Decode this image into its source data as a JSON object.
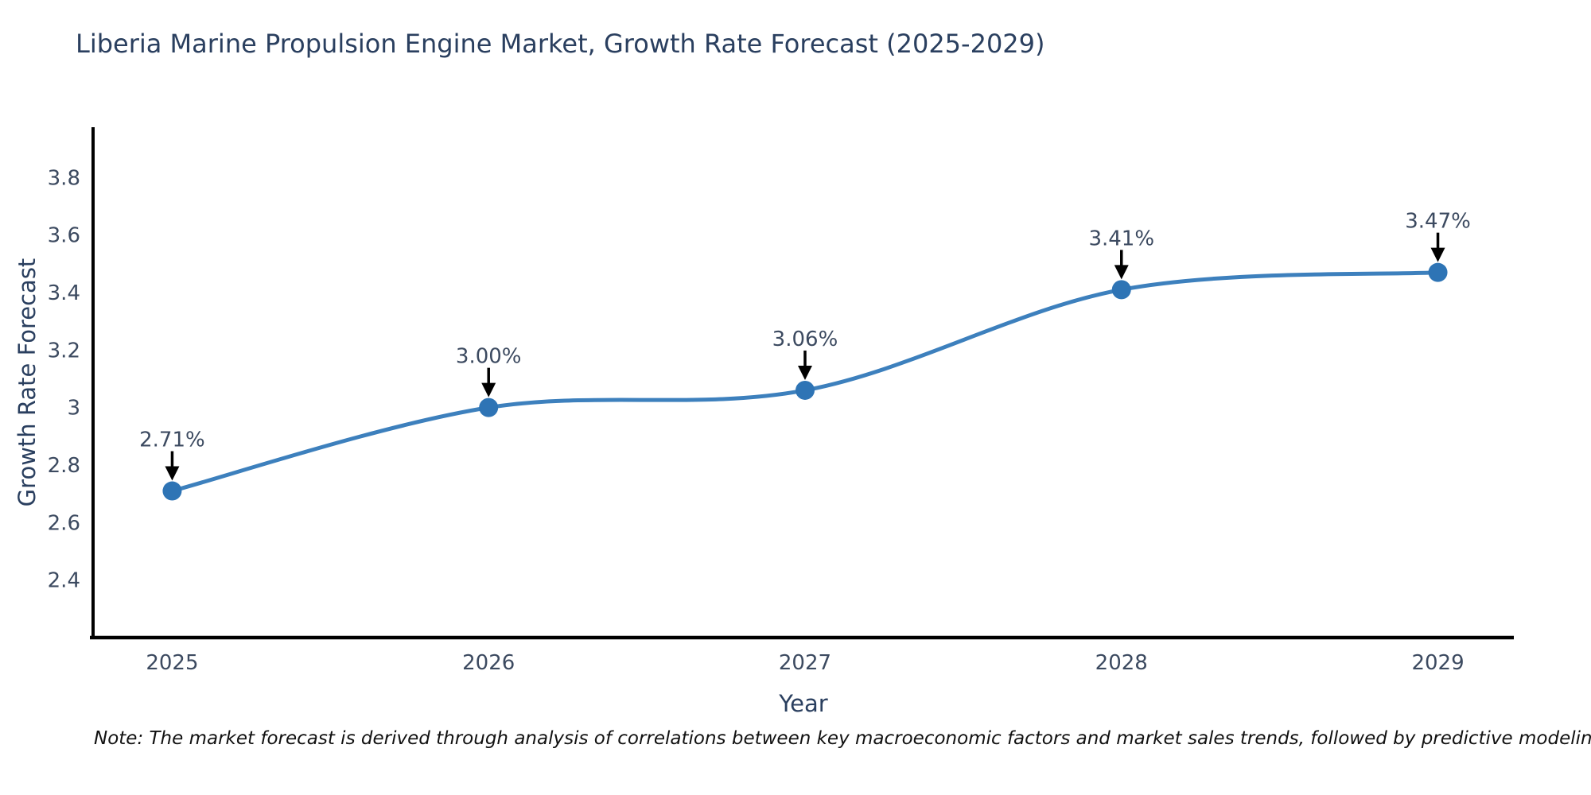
{
  "chart_data": {
    "type": "line",
    "title": "Liberia Marine Propulsion Engine Market, Growth Rate Forecast (2025-2029)",
    "xlabel": "Year",
    "ylabel": "Growth Rate Forecast",
    "categories": [
      2025,
      2026,
      2027,
      2028,
      2029
    ],
    "series": [
      {
        "name": "Growth Rate Forecast",
        "values": [
          2.71,
          3.0,
          3.06,
          3.41,
          3.47
        ],
        "point_labels": [
          "2.71%",
          "3.00%",
          "3.06%",
          "3.41%",
          "3.47%"
        ]
      }
    ],
    "xtick_labels": [
      "2025",
      "2026",
      "2027",
      "2028",
      "2029"
    ],
    "ytick_values": [
      2.4,
      2.6,
      2.8,
      3,
      3.2,
      3.4,
      3.6,
      3.8
    ],
    "ytick_labels": [
      "2.4",
      "2.6",
      "2.8",
      "3",
      "3.2",
      "3.4",
      "3.6",
      "3.8"
    ],
    "xlim": [
      2024.75,
      2029.24
    ],
    "ylim": [
      2.2,
      3.975
    ],
    "line_shape": "spline",
    "grid": false,
    "legend": false,
    "colors": {
      "line": "#3d80bd",
      "marker": "#2e74b5",
      "axis": "#000000",
      "title_text": "#2a3f5f",
      "tick_text": "#3c4a60",
      "annotation_text": "#3c4a60",
      "annotation_arrow": "#000000",
      "background": "#ffffff"
    }
  },
  "note": "Note: The market forecast is derived through analysis of correlations between key macroeconomic factors and market sales trends, followed by predictive modeling to project future sales"
}
